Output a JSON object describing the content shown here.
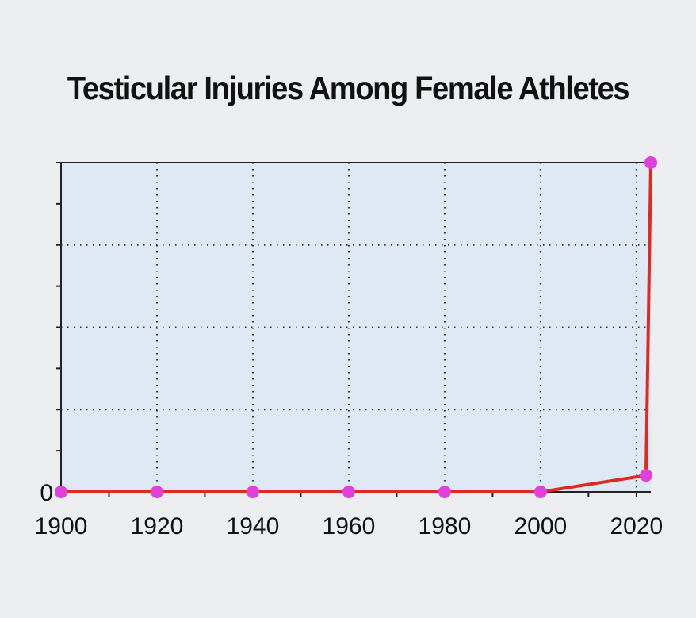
{
  "chart_data": {
    "type": "line",
    "title": "Testicular Injuries Among Female Athletes",
    "xlabel": "",
    "ylabel": "",
    "x_ticks": [
      1900,
      1920,
      1940,
      1960,
      1980,
      2000,
      2020
    ],
    "y_ticks": [
      0
    ],
    "xlim": [
      1900,
      2023
    ],
    "ylim": [
      0,
      100
    ],
    "grid": true,
    "series": [
      {
        "x": [
          1900,
          1920,
          1940,
          1960,
          1980,
          2000,
          2022,
          2023
        ],
        "y": [
          0,
          0,
          0,
          0,
          0,
          0,
          5,
          100
        ]
      }
    ],
    "colors": {
      "line": "#e0291f",
      "marker": "#e040dc",
      "plot_bg": "#dfe9f6",
      "axis": "#222222",
      "grid": "#333333"
    }
  }
}
